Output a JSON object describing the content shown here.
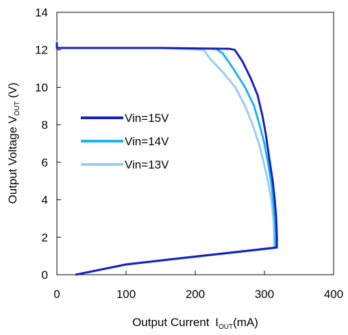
{
  "chart_data": {
    "type": "line",
    "title": "",
    "xlabel": {
      "prefix": "Output Current ",
      "main": "I",
      "sub": "OUT",
      "suffix": "(mA)"
    },
    "ylabel": {
      "prefix": "Output Voltage V",
      "sub": "OUT",
      "suffix": " (V)"
    },
    "xlim": [
      0,
      400
    ],
    "ylim": [
      0,
      14
    ],
    "xticks": [
      0,
      100,
      200,
      300,
      400
    ],
    "yticks": [
      0,
      2,
      4,
      6,
      8,
      10,
      12,
      14
    ],
    "grid": false,
    "legend_position": "middle-left",
    "series": [
      {
        "name": "Vin=15V",
        "color": "#1520c0",
        "points": [
          [
            0,
            12.4
          ],
          [
            0,
            12.1
          ],
          [
            50,
            12.1
          ],
          [
            150,
            12.1
          ],
          [
            250,
            12.05
          ],
          [
            257,
            12.0
          ],
          [
            268,
            11.4
          ],
          [
            280,
            10.5
          ],
          [
            290,
            9.6
          ],
          [
            297,
            8.5
          ],
          [
            302,
            7.5
          ],
          [
            307,
            6.2
          ],
          [
            312,
            5.0
          ],
          [
            315,
            4.0
          ],
          [
            317,
            3.0
          ],
          [
            318,
            2.0
          ],
          [
            318,
            1.45
          ],
          [
            200,
            0.97
          ],
          [
            100,
            0.55
          ],
          [
            27,
            0.0
          ]
        ]
      },
      {
        "name": "Vin=14V",
        "color": "#1ab4ec",
        "points": [
          [
            0,
            12.4
          ],
          [
            0,
            12.1
          ],
          [
            50,
            12.1
          ],
          [
            150,
            12.1
          ],
          [
            230,
            12.05
          ],
          [
            240,
            11.8
          ],
          [
            255,
            11.0
          ],
          [
            272,
            10.0
          ],
          [
            285,
            9.0
          ],
          [
            293,
            8.0
          ],
          [
            300,
            7.0
          ],
          [
            306,
            5.8
          ],
          [
            311,
            4.6
          ],
          [
            314,
            3.4
          ],
          [
            316,
            2.4
          ],
          [
            316,
            1.45
          ],
          [
            200,
            0.97
          ],
          [
            100,
            0.55
          ],
          [
            27,
            0.0
          ]
        ]
      },
      {
        "name": "Vin=13V",
        "color": "#9ccbf0",
        "points": [
          [
            0,
            12.5
          ],
          [
            0,
            12.1
          ],
          [
            50,
            12.1
          ],
          [
            150,
            12.1
          ],
          [
            212,
            12.0
          ],
          [
            222,
            11.5
          ],
          [
            240,
            10.8
          ],
          [
            258,
            10.0
          ],
          [
            272,
            9.0
          ],
          [
            283,
            8.0
          ],
          [
            292,
            7.0
          ],
          [
            299,
            6.0
          ],
          [
            305,
            5.0
          ],
          [
            310,
            4.0
          ],
          [
            313,
            3.0
          ],
          [
            314,
            2.0
          ],
          [
            314,
            1.42
          ],
          [
            200,
            0.95
          ],
          [
            100,
            0.55
          ],
          [
            27,
            0.0
          ]
        ]
      }
    ]
  }
}
